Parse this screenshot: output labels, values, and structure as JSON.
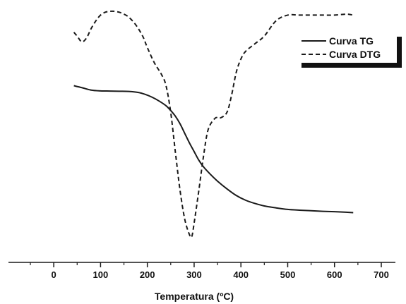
{
  "chart_data": {
    "type": "line",
    "xlabel": "Temperatura (ºC)",
    "ylabel": "",
    "xlim": [
      -50,
      700
    ],
    "xticks": [
      0,
      100,
      200,
      300,
      400,
      500,
      600,
      700
    ],
    "grid": false,
    "legend_position": "top-right",
    "colors": {
      "line": "#1a1a1a",
      "axis": "#1a1a1a",
      "legend_shadow": "#111111"
    },
    "series": [
      {
        "name": "Curva TG",
        "style": "solid",
        "x": [
          43,
          60,
          80,
          100,
          120,
          140,
          160,
          180,
          195,
          210,
          225,
          240,
          250,
          260,
          270,
          280,
          290,
          300,
          310,
          320,
          335,
          350,
          370,
          390,
          410,
          430,
          450,
          475,
          500,
          525,
          550,
          575,
          600,
          625,
          640
        ],
        "y": [
          0.8,
          0.79,
          0.777,
          0.773,
          0.772,
          0.771,
          0.77,
          0.765,
          0.755,
          0.74,
          0.72,
          0.695,
          0.67,
          0.64,
          0.6,
          0.55,
          0.5,
          0.455,
          0.41,
          0.375,
          0.335,
          0.3,
          0.26,
          0.225,
          0.2,
          0.183,
          0.17,
          0.16,
          0.152,
          0.148,
          0.145,
          0.142,
          0.14,
          0.137,
          0.135
        ]
      },
      {
        "name": "Curva DTG",
        "style": "dashed",
        "x": [
          43,
          50,
          60,
          70,
          80,
          90,
          100,
          110,
          120,
          130,
          140,
          150,
          160,
          175,
          190,
          200,
          215,
          230,
          240,
          250,
          260,
          270,
          280,
          290,
          295,
          300,
          310,
          320,
          330,
          345,
          355,
          370,
          380,
          390,
          400,
          410,
          430,
          450,
          475,
          500,
          525,
          550,
          575,
          600,
          625,
          640
        ],
        "y": [
          1.08,
          1.06,
          1.03,
          1.05,
          1.1,
          1.14,
          1.17,
          1.185,
          1.19,
          1.19,
          1.185,
          1.175,
          1.16,
          1.12,
          1.06,
          1.0,
          0.92,
          0.86,
          0.8,
          0.66,
          0.45,
          0.25,
          0.1,
          0.02,
          0.01,
          0.08,
          0.25,
          0.43,
          0.57,
          0.63,
          0.63,
          0.66,
          0.75,
          0.87,
          0.94,
          0.98,
          1.02,
          1.06,
          1.14,
          1.17,
          1.17,
          1.17,
          1.17,
          1.17,
          1.175,
          1.17
        ]
      }
    ]
  }
}
